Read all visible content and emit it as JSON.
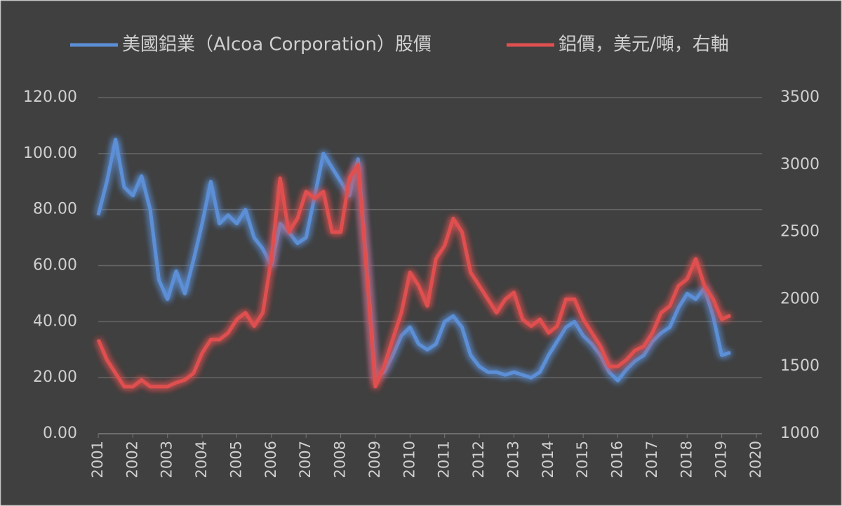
{
  "chart_data": {
    "type": "line",
    "x": [
      2001,
      2001.25,
      2001.5,
      2001.75,
      2002,
      2002.25,
      2002.5,
      2002.75,
      2003,
      2003.25,
      2003.5,
      2003.75,
      2004,
      2004.25,
      2004.5,
      2004.75,
      2005,
      2005.25,
      2005.5,
      2005.75,
      2006,
      2006.25,
      2006.5,
      2006.75,
      2007,
      2007.25,
      2007.5,
      2007.75,
      2008,
      2008.25,
      2008.5,
      2008.75,
      2009,
      2009.25,
      2009.5,
      2009.75,
      2010,
      2010.25,
      2010.5,
      2010.75,
      2011,
      2011.25,
      2011.5,
      2011.75,
      2012,
      2012.25,
      2012.5,
      2012.75,
      2013,
      2013.25,
      2013.5,
      2013.75,
      2014,
      2014.25,
      2014.5,
      2014.75,
      2015,
      2015.25,
      2015.5,
      2015.75,
      2016,
      2016.25,
      2016.5,
      2016.75,
      2017,
      2017.25,
      2017.5,
      2017.75,
      2018,
      2018.25,
      2018.5,
      2018.75,
      2019,
      2019.25
    ],
    "series": [
      {
        "name": "美國鋁業（Alcoa Corporation）股價",
        "color": "#5b8fd6",
        "values": [
          78,
          90,
          105,
          88,
          85,
          92,
          80,
          55,
          48,
          58,
          50,
          62,
          75,
          90,
          75,
          78,
          75,
          80,
          70,
          66,
          60,
          75,
          72,
          68,
          70,
          85,
          100,
          95,
          90,
          85,
          98,
          60,
          20,
          22,
          28,
          35,
          38,
          32,
          30,
          32,
          40,
          42,
          38,
          28,
          24,
          22,
          22,
          21,
          22,
          21,
          20,
          22,
          28,
          33,
          38,
          40,
          35,
          32,
          28,
          22,
          19,
          23,
          26,
          28,
          33,
          36,
          38,
          45,
          50,
          48,
          52,
          42,
          28,
          29
        ]
      },
      {
        "name": "鋁價，美元/噸，右軸",
        "color": "#e0504f",
        "axis": "y2",
        "values": [
          1700,
          1550,
          1450,
          1350,
          1350,
          1400,
          1350,
          1350,
          1350,
          1380,
          1400,
          1450,
          1600,
          1700,
          1700,
          1750,
          1850,
          1900,
          1800,
          1900,
          2300,
          2900,
          2500,
          2600,
          2800,
          2750,
          2800,
          2500,
          2500,
          2900,
          3000,
          2200,
          1350,
          1500,
          1700,
          1900,
          2200,
          2100,
          1950,
          2300,
          2400,
          2600,
          2500,
          2200,
          2100,
          2000,
          1900,
          2000,
          2050,
          1850,
          1800,
          1850,
          1750,
          1800,
          2000,
          2000,
          1850,
          1750,
          1650,
          1500,
          1500,
          1550,
          1620,
          1650,
          1750,
          1900,
          1950,
          2100,
          2150,
          2300,
          2100,
          2000,
          1850,
          1880
        ]
      }
    ],
    "xlim": [
      2001,
      2020
    ],
    "xticks": [
      2001,
      2002,
      2003,
      2004,
      2005,
      2006,
      2007,
      2008,
      2009,
      2010,
      2011,
      2012,
      2013,
      2014,
      2015,
      2016,
      2017,
      2018,
      2019,
      2020
    ],
    "ylim": [
      0,
      120
    ],
    "yticks": [
      {
        "value": 0,
        "label": "0.00"
      },
      {
        "value": 20,
        "label": "20.00"
      },
      {
        "value": 40,
        "label": "40.00"
      },
      {
        "value": 60,
        "label": "60.00"
      },
      {
        "value": 80,
        "label": "80.00"
      },
      {
        "value": 100,
        "label": "100.00"
      },
      {
        "value": 120,
        "label": "120.00"
      }
    ],
    "y2lim": [
      1000,
      3500
    ],
    "y2ticks": [
      1000,
      1500,
      2000,
      2500,
      3000,
      3500
    ],
    "grid": true
  }
}
